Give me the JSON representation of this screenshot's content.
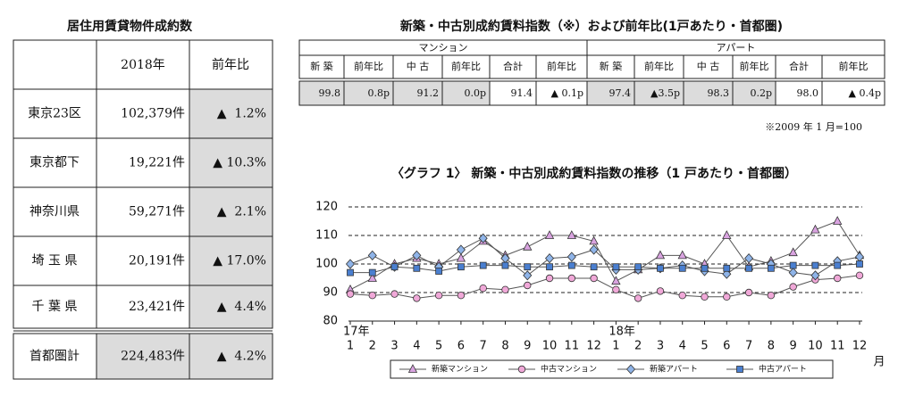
{
  "left_table": {
    "title": "居住用賃貸物件成約数",
    "header": [
      "2018年",
      "前年比"
    ],
    "rows": [
      [
        "東京23区",
        "102,379件",
        "▲  1.2%"
      ],
      [
        "東京都下",
        "19,221件",
        "▲ 10.3%"
      ],
      [
        "神奈川県",
        "59,271件",
        "▲  2.1%"
      ],
      [
        "埼 玉 県",
        "20,191件",
        "▲ 17.0%"
      ],
      [
        "千 葉 県",
        "23,421件",
        "▲  4.4%"
      ]
    ],
    "total": [
      "首都圏計",
      "224,483件",
      "▲  4.2%"
    ]
  },
  "index_table": {
    "title": "新築・中古別成約賃料指数（※）および前年比(1戸あたり・首都圏)",
    "groups": [
      {
        "name": "マンション",
        "headers": [
          "新 築",
          "前年比",
          "中 古",
          "前年比",
          "合計",
          "前年比"
        ],
        "values": [
          "99.8",
          "0.8p",
          "91.2",
          "0.0p",
          "91.4",
          "▲ 0.1p"
        ]
      },
      {
        "name": "アパート",
        "headers": [
          "新 築",
          "前年比",
          "中 古",
          "前年比",
          "合計",
          "前年比"
        ],
        "values": [
          "97.4",
          "▲3.5p",
          "98.3",
          "0.2p",
          "98.0",
          "▲ 0.4p"
        ]
      }
    ],
    "note": "※2009 年 1 月=100"
  },
  "chart_data": {
    "type": "line",
    "title": "〈グラフ 1〉 新築・中古別成約賃料指数の推移（1 戸あたり・首都圏）",
    "categories": [
      "1",
      "2",
      "3",
      "4",
      "5",
      "6",
      "7",
      "8",
      "9",
      "10",
      "11",
      "12",
      "1",
      "2",
      "3",
      "4",
      "5",
      "6",
      "7",
      "8",
      "9",
      "10",
      "11",
      "12"
    ],
    "year_labels": [
      {
        "index": 0,
        "label": "17年"
      },
      {
        "index": 12,
        "label": "18年"
      }
    ],
    "x_unit_label": "月",
    "ylim": [
      80,
      120
    ],
    "yticks": [
      80,
      90,
      100,
      110,
      120
    ],
    "grid": true,
    "legend": "bottom",
    "series": [
      {
        "name": "新築マンション",
        "color": "#d9a3e0",
        "marker": "triangle",
        "values": [
          91,
          95,
          100,
          102,
          100,
          102,
          108,
          103,
          106,
          110,
          110,
          108,
          94,
          98,
          103,
          103,
          100,
          110,
          99,
          101,
          104,
          112,
          115,
          103
        ]
      },
      {
        "name": "中古マンション",
        "color": "#f0a8d8",
        "marker": "circle",
        "values": [
          89.5,
          89,
          89.5,
          88,
          89,
          89,
          91.5,
          91,
          92.5,
          95,
          95,
          95,
          91,
          88,
          90.5,
          89,
          88.5,
          88.5,
          90,
          89,
          92,
          94.5,
          95,
          96
        ]
      },
      {
        "name": "新築アパート",
        "color": "#8fb4e8",
        "marker": "diamond",
        "values": [
          100,
          103,
          99,
          103,
          99,
          105,
          109,
          102,
          96,
          102,
          102.5,
          105,
          98,
          98,
          98.5,
          99.5,
          97.5,
          96.5,
          102,
          100,
          97,
          96,
          101,
          102.5
        ]
      },
      {
        "name": "中古アパート",
        "color": "#4a7fd0",
        "marker": "square",
        "values": [
          97,
          97,
          99,
          98.5,
          97.5,
          99,
          99.5,
          99.5,
          99,
          99,
          99.5,
          99,
          99,
          99,
          98.5,
          98.5,
          98.5,
          98.5,
          98.5,
          98.5,
          99.5,
          99.5,
          99.5,
          100
        ]
      }
    ]
  }
}
